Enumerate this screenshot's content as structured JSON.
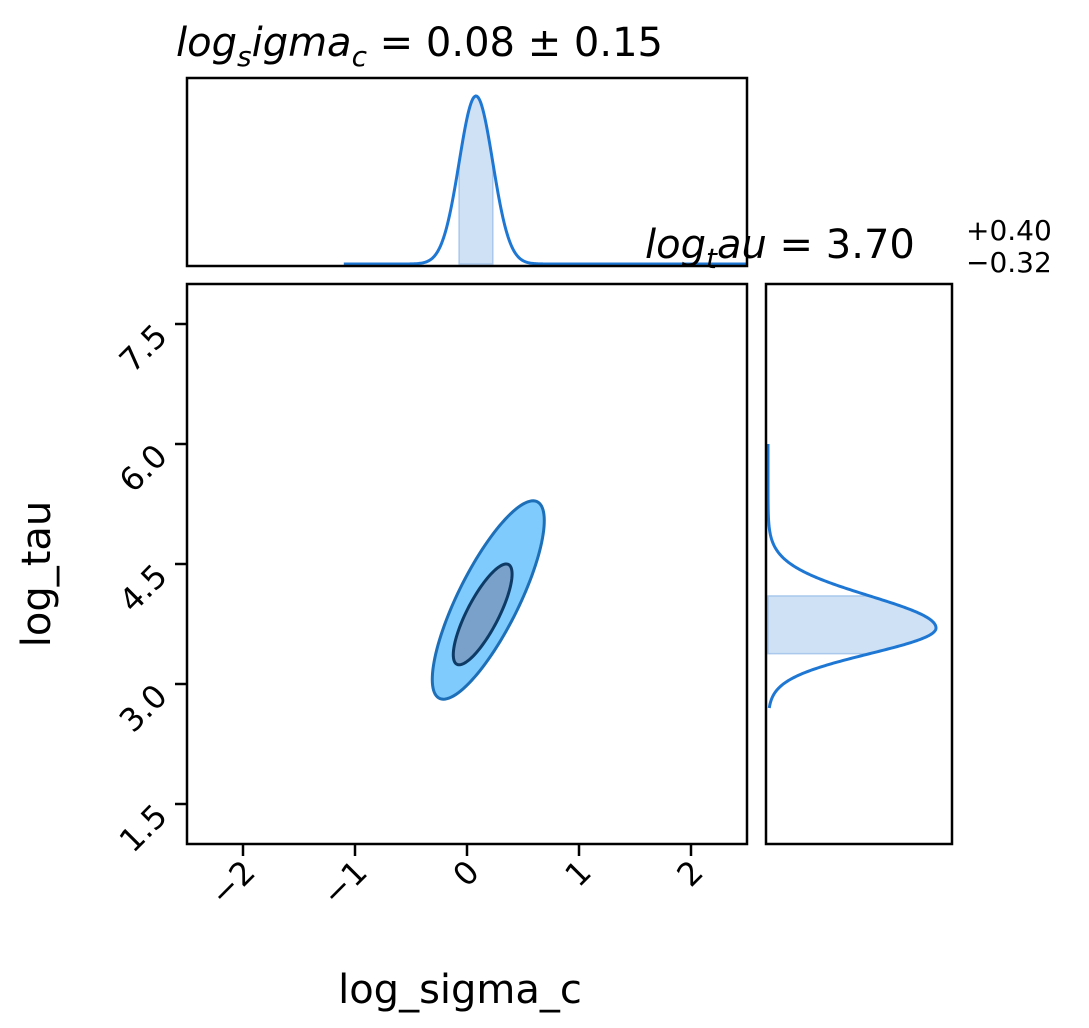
{
  "colors": {
    "line": "#1f77d4",
    "outer_fill": "#7fcbfd",
    "inner_fill": "#7aa1c9",
    "outer_stroke": "#1d6fb8",
    "inner_stroke": "#0e3a66",
    "band_fill": "#cfe1f5",
    "frame": "#000000"
  },
  "chart_data": {
    "type": "corner",
    "variables": [
      "log_sigma_c",
      "log_tau"
    ],
    "xlabel": "log_sigma_c",
    "ylabel": "log_tau",
    "xlim": [
      -2.5,
      2.5
    ],
    "ylim": [
      1.0,
      8.0
    ],
    "x_ticks": [
      -2,
      -1,
      0,
      1,
      2
    ],
    "x_tick_labels": [
      "−2",
      "−1",
      "0",
      "1",
      "2"
    ],
    "y_ticks": [
      1.5,
      3.0,
      4.5,
      6.0,
      7.5
    ],
    "y_tick_labels": [
      "1.5",
      "3.0",
      "4.5",
      "6.0",
      "7.5"
    ],
    "marginals": [
      {
        "variable": "log_sigma_c",
        "title": {
          "prefix": "log",
          "sub": "s",
          "mid": "igma",
          "sub2": "c",
          "value": " = 0.08 ± 0.15"
        },
        "mean": 0.08,
        "sd": 0.15,
        "band": [
          -0.07,
          0.23
        ],
        "curve_range": [
          -1.1,
          2.5
        ]
      },
      {
        "variable": "log_tau",
        "title": {
          "prefix": "log",
          "sub": "t",
          "mid": "au",
          "value": " = 3.70",
          "plus": "+0.40",
          "minus": "−0.32"
        },
        "mode": 3.7,
        "sd_upper": 0.4,
        "sd_lower": 0.32,
        "band": [
          3.38,
          4.1
        ],
        "curve_range": [
          2.7,
          6.0
        ]
      }
    ],
    "contours": [
      {
        "level": "outer",
        "center": [
          0.19,
          4.05
        ],
        "corr": 0.8
      },
      {
        "level": "inner",
        "center": [
          0.14,
          3.87
        ],
        "corr": 0.8
      }
    ]
  }
}
